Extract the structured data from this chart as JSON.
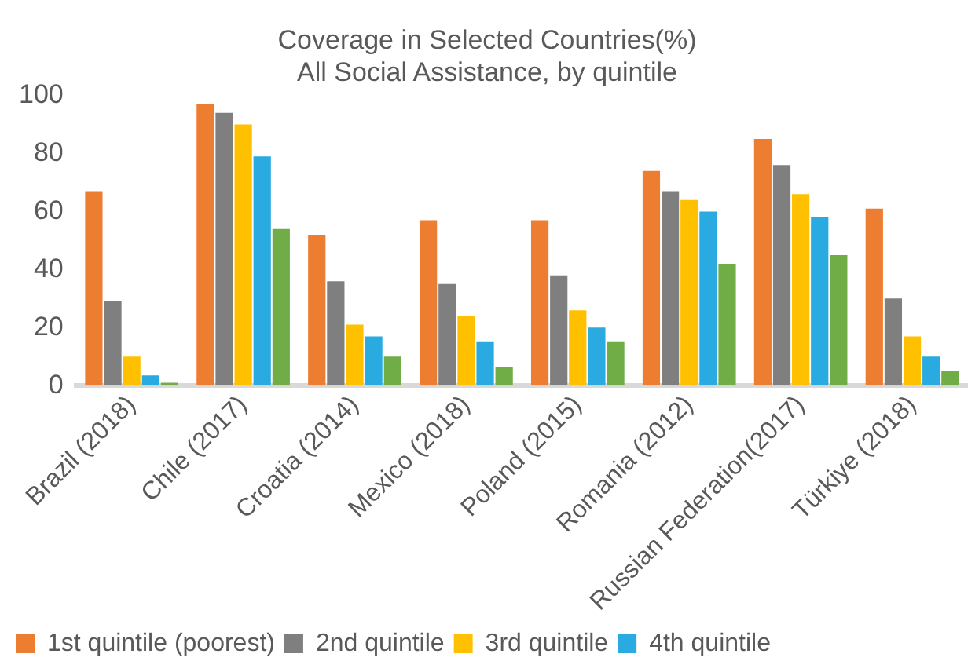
{
  "chart_data": {
    "type": "bar",
    "title": "Coverage in Selected Countries(%)",
    "subtitle": "All Social Assistance, by quintile",
    "categories": [
      "Brazil (2018)",
      "Chile (2017)",
      "Croatia (2014)",
      "Mexico (2018)",
      "Poland (2015)",
      "Romania (2012)",
      "Russian Federation(2017)",
      "Türkiye (2018)"
    ],
    "series": [
      {
        "name": "1st quintile (poorest)",
        "color": "#ed7d31",
        "values": [
          67,
          97,
          52,
          57,
          57,
          74,
          85,
          61
        ]
      },
      {
        "name": "2nd quintile",
        "color": "#7f7f7f",
        "values": [
          29,
          94,
          36,
          35,
          38,
          67,
          76,
          30
        ]
      },
      {
        "name": "3rd quintile",
        "color": "#ffc000",
        "values": [
          10,
          90,
          21,
          24,
          26,
          64,
          66,
          17
        ]
      },
      {
        "name": "4th quintile",
        "color": "#29abe2",
        "values": [
          3.5,
          79,
          17,
          15,
          20,
          60,
          58,
          10
        ]
      },
      {
        "color": "#70ad47",
        "values": [
          1,
          54,
          10,
          6.5,
          15,
          42,
          45,
          5
        ]
      }
    ],
    "ylim": [
      0,
      100
    ],
    "yticks": [
      0,
      20,
      40,
      60,
      80,
      100
    ],
    "grid": false,
    "legend": "bottom"
  }
}
